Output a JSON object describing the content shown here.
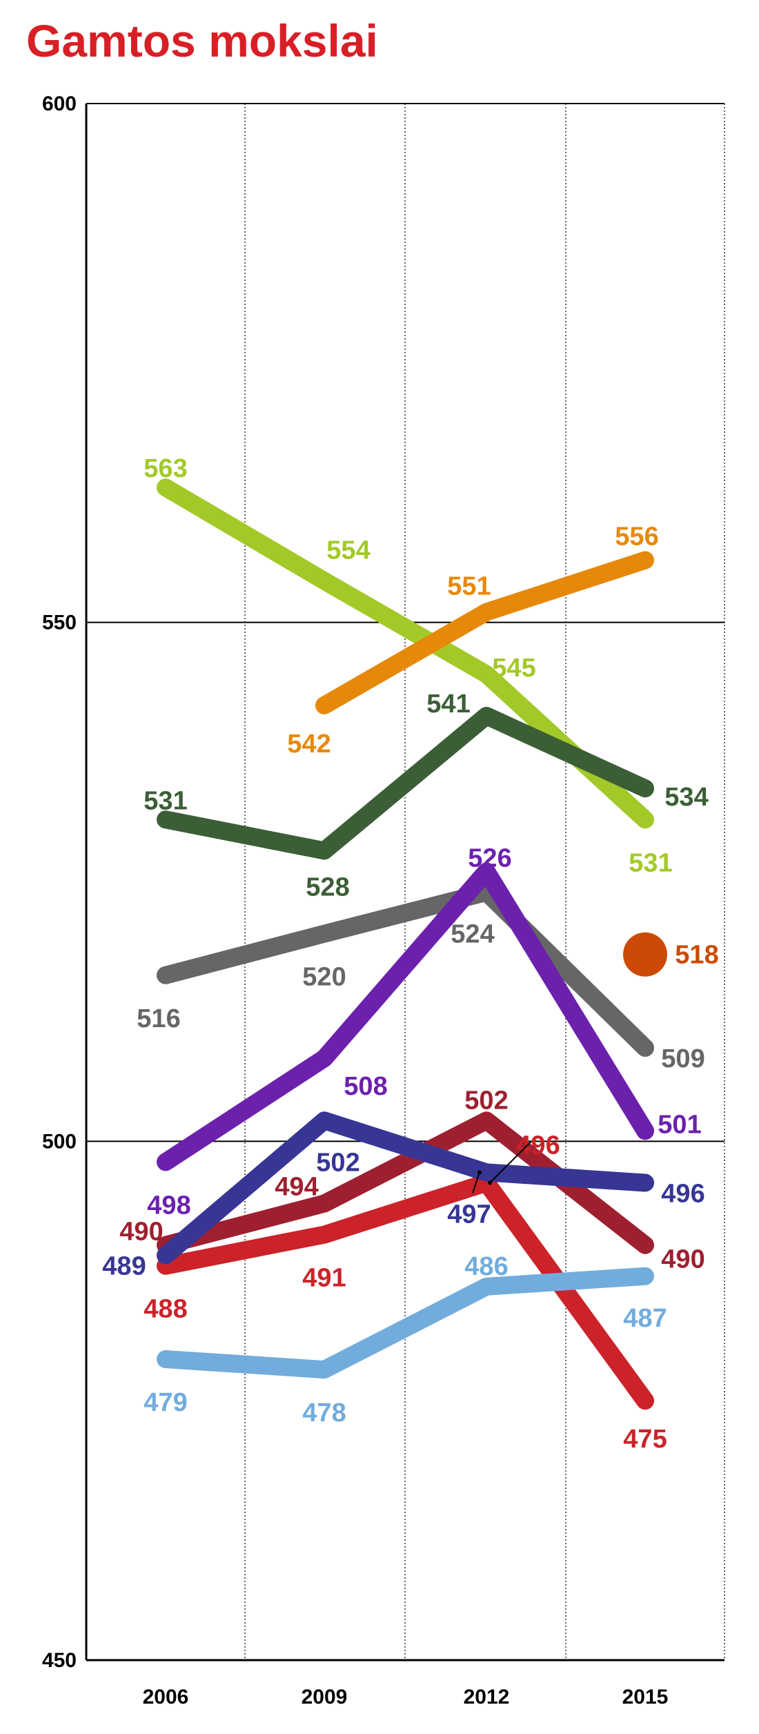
{
  "chart_data": {
    "type": "line",
    "title": "Gamtos mokslai",
    "title_color": "#d81f26",
    "xlabel": "",
    "ylabel": "",
    "x": [
      "2006",
      "2009",
      "2012",
      "2015"
    ],
    "ylim": [
      450,
      600
    ],
    "yticks": [
      "450",
      "500",
      "550",
      "600"
    ],
    "grid": true,
    "series": [
      {
        "color": "#a3c928",
        "values": [
          563,
          554,
          545,
          531
        ],
        "labels": [
          "563",
          "554",
          "545",
          "531"
        ]
      },
      {
        "color": "#e6890b",
        "values": [
          null,
          542,
          551,
          556
        ],
        "labels": [
          "",
          "542",
          "551",
          "556"
        ]
      },
      {
        "color": "#3b5e36",
        "values": [
          531,
          528,
          541,
          534
        ],
        "labels": [
          "531",
          "528",
          "541",
          "534"
        ]
      },
      {
        "color": "#666666",
        "values": [
          516,
          520,
          524,
          509
        ],
        "labels": [
          "516",
          "520",
          "524",
          "509"
        ]
      },
      {
        "color": "#6c21ad",
        "values": [
          498,
          508,
          526,
          501
        ],
        "labels": [
          "498",
          "508",
          "526",
          "501"
        ]
      },
      {
        "color": "#9e2030",
        "values": [
          490,
          494,
          502,
          490
        ],
        "labels": [
          "490",
          "494",
          "502",
          "490"
        ]
      },
      {
        "color": "#cc2229",
        "values": [
          488,
          491,
          496,
          475
        ],
        "labels": [
          "488",
          "491",
          "496",
          "475"
        ]
      },
      {
        "color": "#373695",
        "values": [
          489,
          502,
          497,
          496
        ],
        "labels": [
          "489",
          "502",
          "497",
          "496"
        ]
      },
      {
        "color": "#72acdc",
        "values": [
          479,
          478,
          486,
          487
        ],
        "labels": [
          "479",
          "478",
          "486",
          "487"
        ]
      }
    ],
    "point": {
      "x": "2015",
      "value": 518,
      "label": "518",
      "color": "#cc4a06"
    }
  }
}
